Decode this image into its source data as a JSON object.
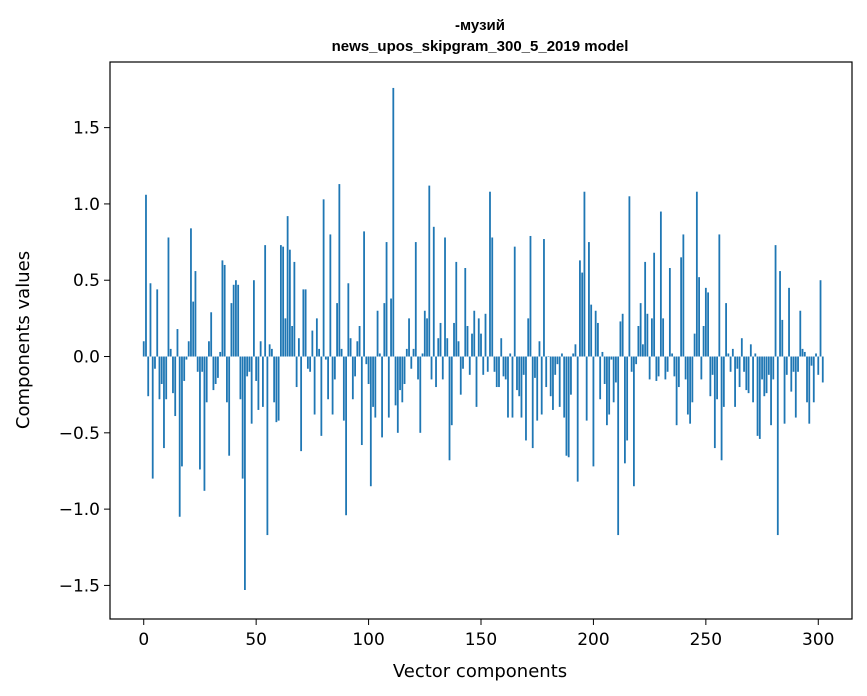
{
  "chart_data": {
    "type": "bar",
    "title_line1": "-музий",
    "title_line2": "news_upos_skipgram_300_5_2019 model",
    "xlabel": "Vector components",
    "ylabel": "Components values",
    "xlim": [
      -15,
      315
    ],
    "ylim": [
      -1.72,
      1.93
    ],
    "x_ticks": [
      {
        "value": 0,
        "label": "0"
      },
      {
        "value": 50,
        "label": "50"
      },
      {
        "value": 100,
        "label": "100"
      },
      {
        "value": 150,
        "label": "150"
      },
      {
        "value": 200,
        "label": "200"
      },
      {
        "value": 250,
        "label": "250"
      },
      {
        "value": 300,
        "label": "300"
      }
    ],
    "y_ticks": [
      {
        "value": 1.5,
        "label": "1.5"
      },
      {
        "value": 1.0,
        "label": "1.0"
      },
      {
        "value": 0.5,
        "label": "0.5"
      },
      {
        "value": 0.0,
        "label": "0.0"
      },
      {
        "value": -0.5,
        "label": "−0.5"
      },
      {
        "value": -1.0,
        "label": "−1.0"
      },
      {
        "value": -1.5,
        "label": "−1.5"
      }
    ],
    "bar_color": "#1f77b4",
    "values": [
      0.1,
      1.06,
      -0.26,
      0.48,
      -0.8,
      -0.08,
      0.44,
      -0.28,
      -0.18,
      -0.6,
      -0.28,
      0.78,
      0.05,
      -0.24,
      -0.39,
      0.18,
      -1.05,
      -0.72,
      -0.16,
      -0.02,
      0.1,
      0.84,
      0.36,
      0.56,
      -0.1,
      -0.74,
      -0.1,
      -0.88,
      -0.3,
      0.1,
      0.29,
      -0.22,
      -0.18,
      -0.14,
      0.03,
      0.63,
      0.6,
      -0.3,
      -0.65,
      0.35,
      0.47,
      0.5,
      0.47,
      -0.28,
      -0.8,
      -1.53,
      -0.13,
      -0.1,
      -0.44,
      0.5,
      -0.16,
      -0.35,
      0.1,
      -0.33,
      0.73,
      -1.17,
      0.08,
      0.05,
      -0.3,
      -0.43,
      -0.42,
      0.73,
      0.72,
      0.25,
      0.92,
      0.7,
      0.2,
      0.62,
      -0.2,
      0.12,
      -0.62,
      0.44,
      0.44,
      -0.08,
      -0.1,
      0.17,
      -0.38,
      0.25,
      0.05,
      -0.52,
      1.03,
      -0.02,
      -0.28,
      0.8,
      -0.38,
      -0.15,
      0.35,
      1.13,
      0.05,
      -0.42,
      -1.04,
      0.48,
      0.12,
      -0.28,
      -0.13,
      0.1,
      0.2,
      -0.58,
      0.82,
      -0.05,
      -0.18,
      -0.85,
      -0.33,
      -0.4,
      0.3,
      0.02,
      -0.53,
      0.35,
      0.75,
      -0.4,
      0.38,
      1.76,
      -0.32,
      -0.5,
      -0.22,
      -0.3,
      -0.18,
      0.05,
      0.25,
      -0.08,
      0.05,
      0.75,
      -0.15,
      -0.5,
      0.02,
      0.3,
      0.25,
      1.12,
      -0.15,
      0.85,
      -0.2,
      0.12,
      0.22,
      -0.15,
      0.78,
      0.12,
      -0.68,
      -0.45,
      0.22,
      0.62,
      0.1,
      -0.25,
      -0.08,
      0.58,
      0.2,
      -0.12,
      0.15,
      0.3,
      -0.33,
      0.25,
      0.15,
      -0.12,
      0.28,
      -0.1,
      1.08,
      0.78,
      -0.1,
      -0.2,
      -0.2,
      0.12,
      -0.13,
      -0.15,
      -0.4,
      0.02,
      -0.4,
      0.72,
      -0.22,
      -0.26,
      -0.4,
      -0.12,
      -0.55,
      0.25,
      0.79,
      -0.6,
      -0.14,
      -0.42,
      0.1,
      -0.38,
      0.77,
      -0.2,
      0.0,
      -0.26,
      -0.35,
      -0.12,
      -0.05,
      -0.33,
      0.02,
      -0.4,
      -0.65,
      -0.66,
      -0.25,
      0.02,
      0.08,
      -0.82,
      0.63,
      0.55,
      1.08,
      -0.42,
      0.75,
      0.34,
      -0.72,
      0.3,
      0.22,
      -0.28,
      0.03,
      -0.18,
      -0.45,
      -0.38,
      -0.02,
      -0.3,
      -0.17,
      -1.17,
      0.23,
      0.28,
      -0.7,
      -0.55,
      1.05,
      -0.1,
      -0.85,
      -0.05,
      0.2,
      0.35,
      0.08,
      0.62,
      0.28,
      -0.15,
      0.25,
      0.68,
      -0.16,
      -0.13,
      0.95,
      0.25,
      -0.15,
      -0.1,
      0.58,
      0.02,
      -0.13,
      -0.45,
      -0.2,
      0.65,
      0.8,
      -0.15,
      -0.38,
      -0.44,
      -0.3,
      0.15,
      1.08,
      0.52,
      -0.15,
      0.2,
      0.45,
      0.42,
      -0.26,
      -0.12,
      -0.6,
      -0.28,
      0.8,
      -0.68,
      -0.33,
      0.35,
      0.02,
      -0.1,
      0.05,
      -0.33,
      -0.08,
      -0.2,
      0.12,
      -0.1,
      -0.22,
      -0.24,
      0.08,
      -0.3,
      0.02,
      -0.52,
      -0.54,
      -0.15,
      -0.26,
      -0.24,
      -0.12,
      -0.45,
      -0.15,
      0.73,
      -1.17,
      0.56,
      0.24,
      -0.44,
      -0.12,
      0.45,
      -0.23,
      -0.1,
      -0.4,
      -0.1,
      0.3,
      0.05,
      0.03,
      -0.3,
      -0.44,
      -0.06,
      -0.3,
      0.02,
      -0.12,
      0.5,
      -0.17
    ]
  }
}
